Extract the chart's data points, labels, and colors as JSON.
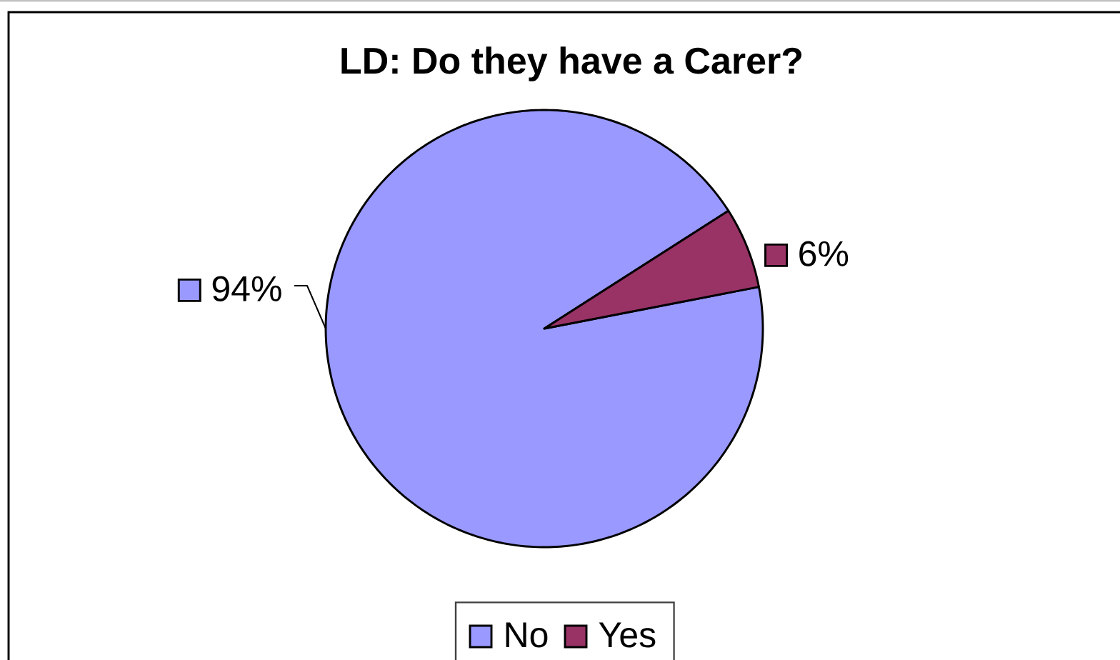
{
  "chart_data": {
    "type": "pie",
    "title": "LD: Do they have a Carer?",
    "categories": [
      "No",
      "Yes"
    ],
    "values": [
      94,
      6
    ],
    "colors": [
      "#9999ff",
      "#993366"
    ],
    "value_labels": [
      "94%",
      "6%"
    ],
    "legend": "bottom"
  }
}
